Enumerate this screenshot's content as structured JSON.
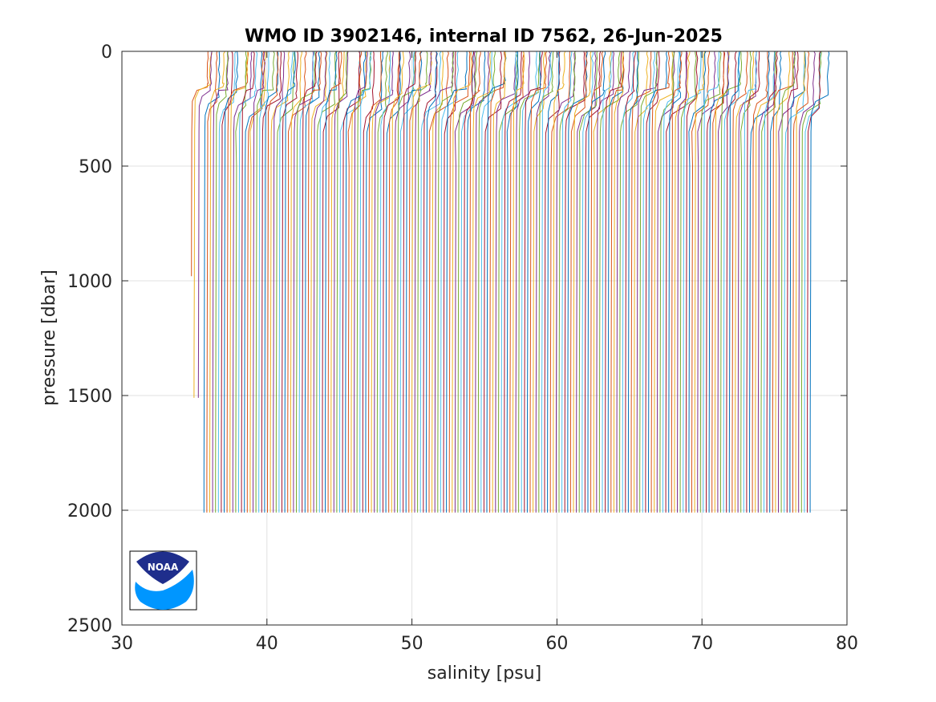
{
  "chart_data": {
    "type": "line",
    "title": "WMO ID 3902146, internal ID 7562, 26-Jun-2025",
    "xlabel": "salinity [psu]",
    "ylabel": "pressure [dbar]",
    "xlim": [
      30,
      80
    ],
    "ylim": [
      0,
      2500
    ],
    "y_reversed": true,
    "grid": true,
    "x_ticks": [
      "30",
      "40",
      "50",
      "60",
      "70",
      "80"
    ],
    "y_ticks": [
      "0",
      "500",
      "1000",
      "1500",
      "2000",
      "2500"
    ],
    "waterfall_offset_psu_per_profile": 0.2,
    "profiles": {
      "count": 211,
      "first_deep_salinity": 35.7,
      "last_deep_salinity": 77.5,
      "max_pressure": 2010,
      "surface_salinity_excess": 1.0,
      "surface_mixed_layer_depth": 200,
      "short_profiles": [
        {
          "deep_salinity": 34.8,
          "max_pressure": 980
        },
        {
          "deep_salinity": 35.0,
          "max_pressure": 1510
        },
        {
          "deep_salinity": 35.3,
          "max_pressure": 1510
        }
      ]
    },
    "series_colors": [
      "#0072BD",
      "#D95319",
      "#EDB120",
      "#7E2F8E",
      "#77AC30",
      "#4DBEEE",
      "#A2142F"
    ]
  },
  "logo": {
    "text": "NOAA",
    "colors": {
      "dark": "#1f2e8c",
      "light": "#0096ff",
      "white": "#ffffff"
    }
  }
}
